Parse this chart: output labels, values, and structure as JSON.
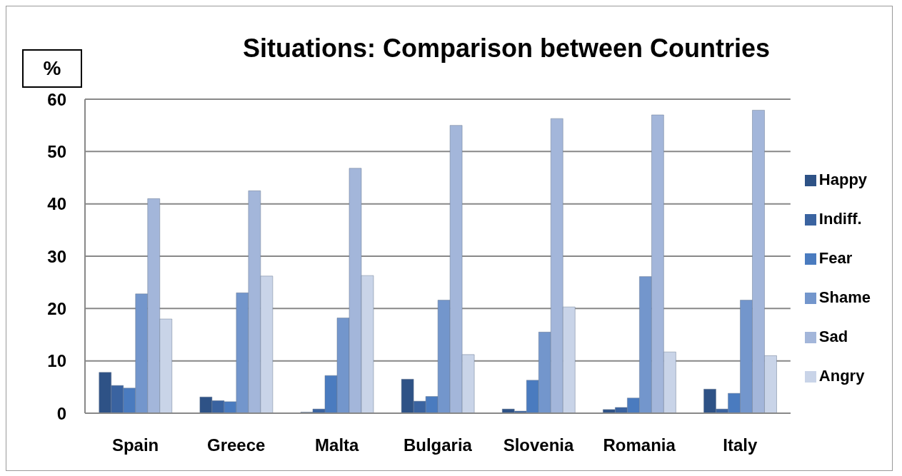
{
  "chart_data": {
    "type": "bar",
    "title": "Situations: Comparison between Countries",
    "ylabel": "%",
    "categories": [
      "Spain",
      "Greece",
      "Malta",
      "Bulgaria",
      "Slovenia",
      "Romania",
      "Italy"
    ],
    "series": [
      {
        "name": "Happy",
        "color": "#2e5286",
        "values": [
          7.8,
          3.1,
          0.2,
          6.5,
          0.8,
          0.7,
          4.6
        ]
      },
      {
        "name": "Indiff.",
        "color": "#3a63a0",
        "values": [
          5.3,
          2.4,
          0.8,
          2.3,
          0.4,
          1.1,
          0.8
        ]
      },
      {
        "name": "Fear",
        "color": "#4a7bbf",
        "values": [
          4.8,
          2.2,
          7.2,
          3.2,
          6.3,
          2.9,
          3.8
        ]
      },
      {
        "name": "Shame",
        "color": "#7396cc",
        "values": [
          22.8,
          23,
          18.2,
          21.6,
          15.5,
          26.1,
          21.6
        ]
      },
      {
        "name": "Sad",
        "color": "#a3b6da",
        "values": [
          41,
          42.5,
          46.8,
          55,
          56.3,
          57,
          57.9
        ]
      },
      {
        "name": "Angry",
        "color": "#c9d4e8",
        "values": [
          18,
          26.2,
          26.3,
          11.2,
          20.3,
          11.7,
          11
        ]
      }
    ],
    "ylim": [
      0,
      60
    ],
    "yticks": [
      0,
      10,
      20,
      30,
      40,
      50,
      60
    ],
    "grid": "y",
    "legend": "right"
  }
}
